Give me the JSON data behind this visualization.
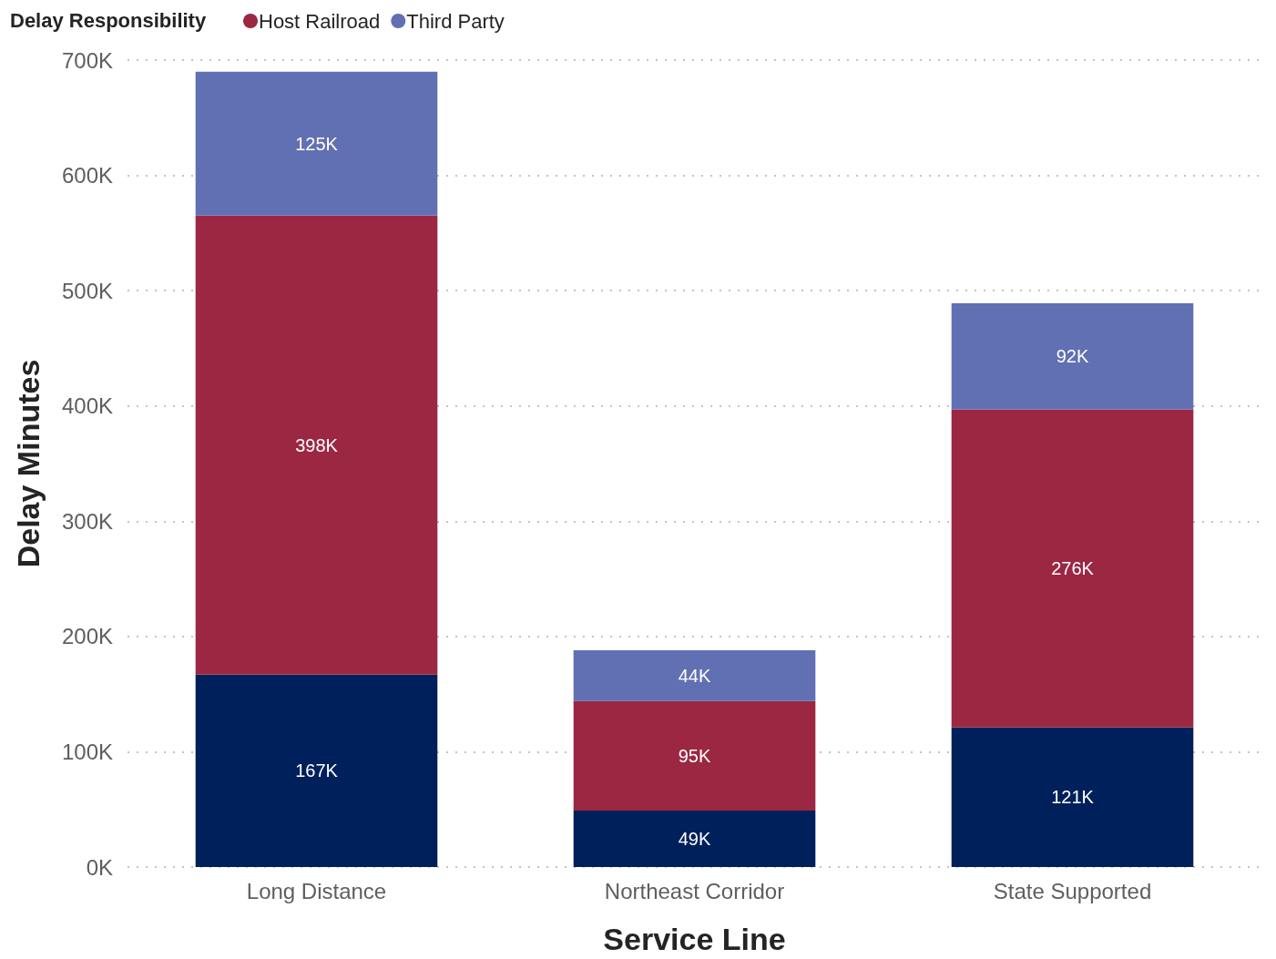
{
  "chart_data": {
    "type": "bar",
    "stacked": true,
    "xlabel": "Service Line",
    "ylabel": "Delay Minutes",
    "legend_title": "Delay Responsibility",
    "legend": "top left",
    "grid": "y",
    "categories": [
      "Long Distance",
      "Northeast Corridor",
      "State Supported"
    ],
    "series": [
      {
        "color": "#00205b",
        "values": [
          167000,
          49000,
          121000
        ],
        "value_labels": [
          "167K",
          "49K",
          "121K"
        ]
      },
      {
        "name": "Host Railroad",
        "color": "#9b2743",
        "values": [
          398000,
          95000,
          276000
        ],
        "value_labels": [
          "398K",
          "95K",
          "276K"
        ]
      },
      {
        "name": "Third Party",
        "color": "#6170b3",
        "values": [
          125000,
          44000,
          92000
        ],
        "value_labels": [
          "125K",
          "44K",
          "92K"
        ]
      }
    ],
    "ylim": [
      0,
      700000
    ],
    "yticks": [
      {
        "value": 0,
        "label": "0K"
      },
      {
        "value": 100000,
        "label": "100K"
      },
      {
        "value": 200000,
        "label": "200K"
      },
      {
        "value": 300000,
        "label": "300K"
      },
      {
        "value": 400000,
        "label": "400K"
      },
      {
        "value": 500000,
        "label": "500K"
      },
      {
        "value": 600000,
        "label": "600K"
      },
      {
        "value": 700000,
        "label": "700K"
      }
    ]
  }
}
